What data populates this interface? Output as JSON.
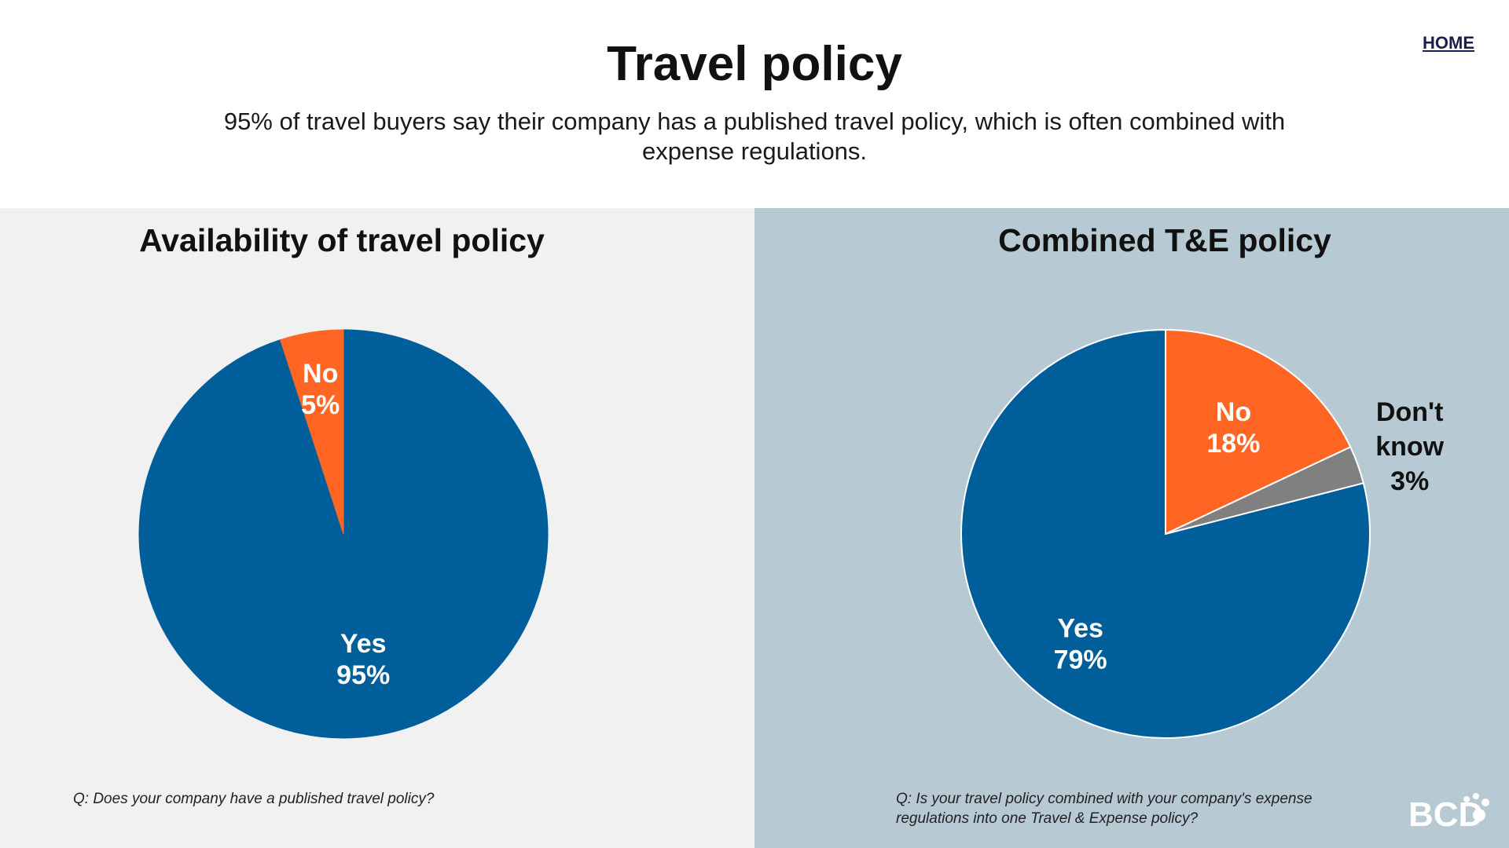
{
  "nav": {
    "home_label": "HOME"
  },
  "header": {
    "title": "Travel policy",
    "subtitle": "95% of travel buyers say their company has a published travel policy, which is often combined with expense regulations."
  },
  "colors": {
    "yes": "#005f9a",
    "no": "#ff6624",
    "dont_know": "#808080",
    "left_panel_bg": "#f1f1f1",
    "right_panel_bg": "#b7c9d3"
  },
  "chart_data": [
    {
      "type": "pie",
      "title": "Availability of travel policy",
      "question": "Q: Does your company have a published travel policy?",
      "slices": [
        {
          "label": "Yes",
          "value": 95,
          "value_label": "95%",
          "color": "#005f9a"
        },
        {
          "label": "No",
          "value": 5,
          "value_label": "5%",
          "color": "#ff6624"
        }
      ]
    },
    {
      "type": "pie",
      "title": "Combined T&E policy",
      "question": "Q: Is your travel policy combined with your company's expense regulations into one Travel & Expense policy?",
      "slices": [
        {
          "label": "No",
          "value": 18,
          "value_label": "18%",
          "color": "#ff6624"
        },
        {
          "label": "Don't know",
          "value": 3,
          "value_label": "3%",
          "color": "#808080"
        },
        {
          "label": "Yes",
          "value": 79,
          "value_label": "79%",
          "color": "#005f9a"
        }
      ]
    }
  ],
  "logo": {
    "text": "BCD"
  }
}
